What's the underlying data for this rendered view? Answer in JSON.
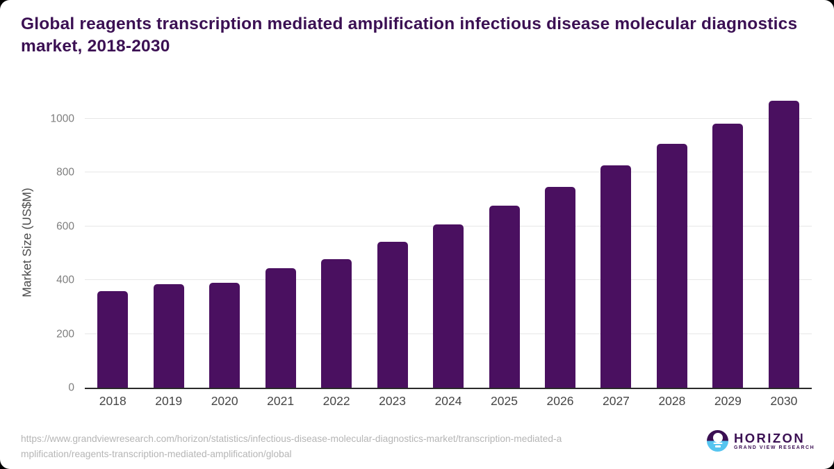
{
  "colors": {
    "bar": "#4a1060",
    "brand_purple": "#3b1053",
    "logo_blue": "#56c5f0",
    "gridline": "#e7e7e7"
  },
  "chart_data": {
    "type": "bar",
    "title": "Global reagents transcription mediated amplification infectious disease molecular diagnostics market, 2018-2030",
    "categories": [
      "2018",
      "2019",
      "2020",
      "2021",
      "2022",
      "2023",
      "2024",
      "2025",
      "2026",
      "2027",
      "2028",
      "2029",
      "2030"
    ],
    "values": [
      358,
      384,
      391,
      444,
      477,
      542,
      607,
      677,
      748,
      826,
      906,
      983,
      1068
    ],
    "xlabel": "",
    "ylabel": "Market Size (US$M)",
    "ylim": [
      0,
      1080
    ],
    "yticks": [
      0,
      200,
      400,
      600,
      800,
      1000
    ],
    "grid": true,
    "legend": false,
    "bar_color": "#4a1060"
  },
  "footer": {
    "url_lines": [
      "https://www.grandviewresearch.com/horizon/statistics/infectious-disease-molecular-diagnostics-market/transcription-mediated-a",
      "mplification/reagents-transcription-mediated-amplification/global"
    ],
    "logo": {
      "name": "HORIZON",
      "subtext": "GRAND VIEW RESEARCH"
    }
  }
}
